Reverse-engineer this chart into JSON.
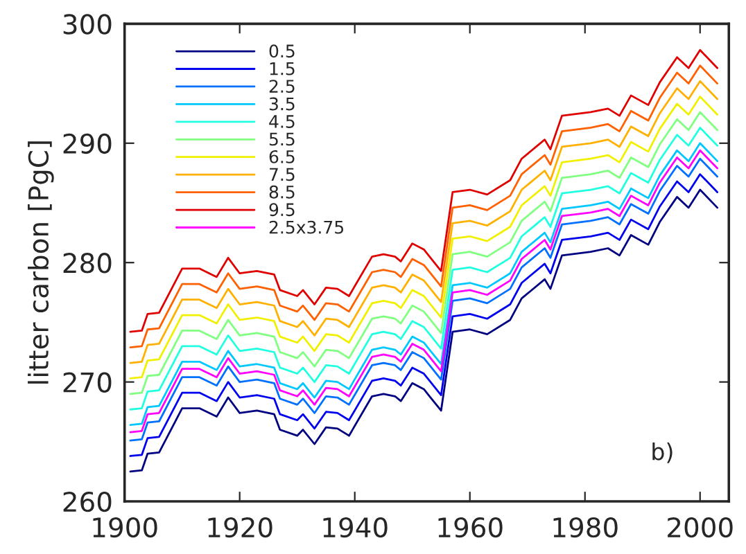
{
  "chart_data": {
    "type": "line",
    "ylabel": "litter carbon [PgC]",
    "xlim": [
      1900,
      2005
    ],
    "xticks": [
      1900,
      1920,
      1940,
      1960,
      1980,
      2000
    ],
    "ylim": [
      260,
      300
    ],
    "yticks": [
      260,
      270,
      280,
      290,
      300
    ],
    "grid": false,
    "legend": "top left",
    "marker": "none",
    "line_style": "solid",
    "x": [
      1901,
      1903,
      1904,
      1906,
      1910,
      1913,
      1916,
      1918,
      1920,
      1923,
      1926,
      1927,
      1930,
      1931,
      1933,
      1935,
      1937,
      1939,
      1943,
      1945,
      1947,
      1948,
      1950,
      1952,
      1953,
      1955,
      1957,
      1960,
      1963,
      1967,
      1969,
      1973,
      1974,
      1976,
      1981,
      1984,
      1986,
      1988,
      1991,
      1993,
      1996,
      1998,
      2000,
      2003
    ],
    "annotations": [
      "b)"
    ],
    "series": [
      {
        "name": "0.5",
        "color": "#000080",
        "values": [
          262.5,
          262.6,
          264.0,
          264.1,
          267.8,
          267.8,
          267.1,
          268.7,
          267.4,
          267.6,
          267.3,
          266.0,
          265.5,
          266.0,
          264.8,
          266.2,
          266.1,
          265.5,
          268.8,
          269.0,
          268.8,
          268.4,
          269.9,
          269.4,
          268.8,
          267.6,
          274.2,
          274.4,
          274.0,
          275.2,
          277.0,
          278.6,
          277.8,
          280.6,
          280.9,
          281.2,
          280.6,
          282.3,
          281.5,
          283.4,
          285.5,
          284.6,
          286.1,
          284.6
        ]
      },
      {
        "name": "1.5",
        "color": "#0000ee",
        "values": [
          263.8,
          263.9,
          265.3,
          265.4,
          269.1,
          269.1,
          268.4,
          270.0,
          268.7,
          268.9,
          268.6,
          267.3,
          266.8,
          267.3,
          266.1,
          267.5,
          267.4,
          266.8,
          270.1,
          270.3,
          270.1,
          269.7,
          271.2,
          270.7,
          270.1,
          268.9,
          275.5,
          275.7,
          275.3,
          276.5,
          278.3,
          279.9,
          279.1,
          281.9,
          282.2,
          282.5,
          281.9,
          283.6,
          282.8,
          284.7,
          286.8,
          285.9,
          287.4,
          285.9
        ]
      },
      {
        "name": "2.5",
        "color": "#0070ff",
        "values": [
          265.1,
          265.2,
          266.6,
          266.7,
          270.4,
          270.4,
          269.7,
          271.3,
          270.0,
          270.2,
          269.9,
          268.6,
          268.1,
          268.6,
          267.4,
          268.8,
          268.7,
          268.1,
          271.4,
          271.6,
          271.4,
          271.0,
          272.5,
          272.0,
          271.4,
          270.2,
          276.8,
          277.0,
          276.6,
          277.8,
          279.6,
          281.2,
          280.4,
          283.2,
          283.5,
          283.8,
          283.2,
          284.9,
          284.1,
          286.0,
          288.1,
          287.2,
          288.7,
          287.2
        ]
      },
      {
        "name": "3.5",
        "color": "#00c8ff",
        "values": [
          266.4,
          266.5,
          267.9,
          268.0,
          271.7,
          271.7,
          271.0,
          272.6,
          271.3,
          271.5,
          271.2,
          269.9,
          269.4,
          269.9,
          268.7,
          270.1,
          270.0,
          269.4,
          272.7,
          272.9,
          272.7,
          272.3,
          273.8,
          273.3,
          272.7,
          271.5,
          278.1,
          278.3,
          277.9,
          279.1,
          280.9,
          282.5,
          281.7,
          284.5,
          284.8,
          285.1,
          284.5,
          286.2,
          285.4,
          287.3,
          289.4,
          288.5,
          290.0,
          288.5
        ]
      },
      {
        "name": "4.5",
        "color": "#20ffe0",
        "values": [
          267.7,
          267.8,
          269.2,
          269.3,
          273.0,
          273.0,
          272.3,
          273.9,
          272.6,
          272.8,
          272.5,
          271.2,
          270.7,
          271.2,
          270.0,
          271.4,
          271.3,
          270.7,
          274.0,
          274.2,
          274.0,
          273.6,
          275.1,
          274.6,
          274.0,
          272.8,
          279.4,
          279.6,
          279.2,
          280.4,
          282.2,
          283.8,
          283.0,
          285.8,
          286.1,
          286.4,
          285.8,
          287.5,
          286.7,
          288.6,
          290.7,
          289.8,
          291.3,
          289.8
        ]
      },
      {
        "name": "5.5",
        "color": "#80ff80",
        "values": [
          269.0,
          269.1,
          270.5,
          270.6,
          274.3,
          274.3,
          273.6,
          275.2,
          273.9,
          274.1,
          273.8,
          272.5,
          272.0,
          272.5,
          271.3,
          272.7,
          272.6,
          272.0,
          275.3,
          275.5,
          275.3,
          274.9,
          276.4,
          275.9,
          275.3,
          274.1,
          280.7,
          280.9,
          280.5,
          281.7,
          283.5,
          285.1,
          284.3,
          287.1,
          287.4,
          287.7,
          287.1,
          288.8,
          288.0,
          289.9,
          292.0,
          291.1,
          292.6,
          291.1
        ]
      },
      {
        "name": "6.5",
        "color": "#f0f000",
        "values": [
          270.3,
          270.4,
          271.8,
          271.9,
          275.6,
          275.6,
          274.9,
          276.5,
          275.2,
          275.4,
          275.1,
          273.8,
          273.3,
          273.8,
          272.6,
          274.0,
          273.9,
          273.3,
          276.6,
          276.8,
          276.6,
          276.2,
          277.7,
          277.2,
          276.6,
          275.4,
          282.0,
          282.2,
          281.8,
          283.0,
          284.8,
          286.4,
          285.6,
          288.4,
          288.7,
          289.0,
          288.4,
          290.1,
          289.3,
          291.2,
          293.3,
          292.4,
          293.9,
          292.4
        ]
      },
      {
        "name": "7.5",
        "color": "#ffb000",
        "values": [
          271.6,
          271.7,
          273.1,
          273.2,
          276.9,
          276.9,
          276.2,
          277.8,
          276.5,
          276.7,
          276.4,
          275.1,
          274.6,
          275.1,
          273.9,
          275.3,
          275.2,
          274.6,
          277.9,
          278.1,
          277.9,
          277.5,
          279.0,
          278.5,
          277.9,
          276.7,
          283.3,
          283.5,
          283.1,
          284.3,
          286.1,
          287.7,
          286.9,
          289.7,
          290.0,
          290.3,
          289.7,
          291.4,
          290.6,
          292.5,
          294.6,
          293.7,
          295.2,
          293.7
        ]
      },
      {
        "name": "8.5",
        "color": "#ff6000",
        "values": [
          272.9,
          273.0,
          274.4,
          274.5,
          278.2,
          278.2,
          277.5,
          279.1,
          277.8,
          278.0,
          277.7,
          276.4,
          275.9,
          276.4,
          275.2,
          276.6,
          276.5,
          275.9,
          279.2,
          279.4,
          279.2,
          278.8,
          280.3,
          279.8,
          279.2,
          278.0,
          284.6,
          284.8,
          284.4,
          285.6,
          287.4,
          289.0,
          288.2,
          291.0,
          291.3,
          291.6,
          291.0,
          292.7,
          291.9,
          293.8,
          295.9,
          295.0,
          296.5,
          295.0
        ]
      },
      {
        "name": "9.5",
        "color": "#e00000",
        "values": [
          274.2,
          274.3,
          275.7,
          275.8,
          279.5,
          279.5,
          278.8,
          280.4,
          279.1,
          279.3,
          279.0,
          277.7,
          277.2,
          277.7,
          276.5,
          277.9,
          277.8,
          277.2,
          280.5,
          280.7,
          280.5,
          280.1,
          281.6,
          281.1,
          280.5,
          279.3,
          285.9,
          286.1,
          285.7,
          286.9,
          288.7,
          290.3,
          289.5,
          292.3,
          292.6,
          292.9,
          292.3,
          294.0,
          293.2,
          295.1,
          297.2,
          296.3,
          297.8,
          296.3
        ]
      },
      {
        "name": "2.5x3.75",
        "color": "#ff00ff",
        "values": [
          265.8,
          265.9,
          267.3,
          267.4,
          271.1,
          271.1,
          270.4,
          272.0,
          270.7,
          270.9,
          270.6,
          269.3,
          268.8,
          269.3,
          268.1,
          269.5,
          269.4,
          268.8,
          272.1,
          272.3,
          272.1,
          271.7,
          273.2,
          272.7,
          272.1,
          270.9,
          277.5,
          277.7,
          277.3,
          278.5,
          280.3,
          281.9,
          281.1,
          283.9,
          284.2,
          284.5,
          283.9,
          285.6,
          284.8,
          286.7,
          288.8,
          287.9,
          289.4,
          287.9
        ]
      }
    ]
  }
}
